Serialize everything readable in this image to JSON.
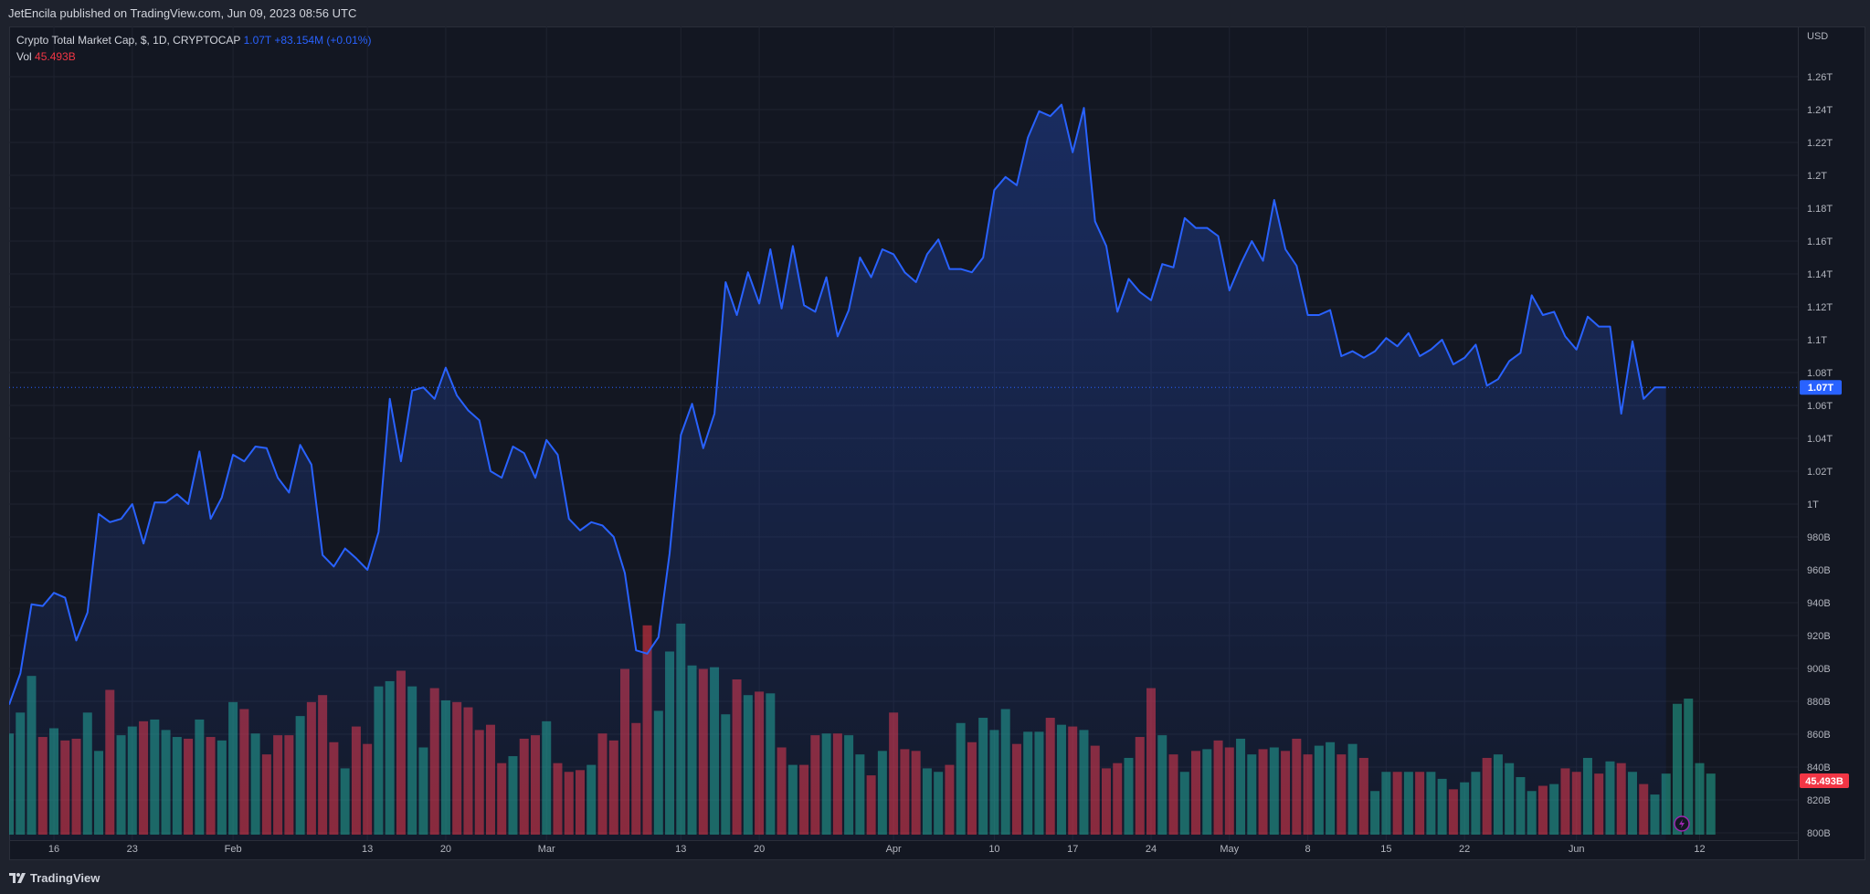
{
  "header": {
    "publisher": "JetEncila published on TradingView.com, Jun 09, 2023 08:56 UTC"
  },
  "legend": {
    "symbol": "Crypto Total Market Cap, $, 1D, CRYPTOCAP",
    "last": "1.07T",
    "change": "+83.154M (+0.01%)",
    "vol_label": "Vol",
    "vol_value": "45.493B"
  },
  "footer": {
    "brand": "TradingView"
  },
  "colors": {
    "line": "#2962ff",
    "up_volume": "#22ab94",
    "down_volume": "#f23645",
    "background": "#131722"
  },
  "chart_data": {
    "type": "area",
    "currency": "USD",
    "y_unit_label": "USD",
    "ylim": [
      800,
      1270
    ],
    "y_ticks": [
      {
        "value": 1260,
        "label": "1.26T"
      },
      {
        "value": 1240,
        "label": "1.24T"
      },
      {
        "value": 1220,
        "label": "1.22T"
      },
      {
        "value": 1200,
        "label": "1.2T"
      },
      {
        "value": 1180,
        "label": "1.18T"
      },
      {
        "value": 1160,
        "label": "1.16T"
      },
      {
        "value": 1140,
        "label": "1.14T"
      },
      {
        "value": 1120,
        "label": "1.12T"
      },
      {
        "value": 1100,
        "label": "1.1T"
      },
      {
        "value": 1080,
        "label": "1.08T"
      },
      {
        "value": 1060,
        "label": "1.06T"
      },
      {
        "value": 1040,
        "label": "1.04T"
      },
      {
        "value": 1020,
        "label": "1.02T"
      },
      {
        "value": 1000,
        "label": "1T"
      },
      {
        "value": 980,
        "label": "980B"
      },
      {
        "value": 960,
        "label": "960B"
      },
      {
        "value": 940,
        "label": "940B"
      },
      {
        "value": 920,
        "label": "920B"
      },
      {
        "value": 900,
        "label": "900B"
      },
      {
        "value": 880,
        "label": "880B"
      },
      {
        "value": 860,
        "label": "860B"
      },
      {
        "value": 840,
        "label": "840B"
      },
      {
        "value": 820,
        "label": "820B"
      },
      {
        "value": 800,
        "label": "800B"
      }
    ],
    "x_ticks": [
      {
        "index": 4,
        "label": "16"
      },
      {
        "index": 11,
        "label": "23"
      },
      {
        "index": 20,
        "label": "Feb"
      },
      {
        "index": 32,
        "label": "13"
      },
      {
        "index": 39,
        "label": "20"
      },
      {
        "index": 48,
        "label": "Mar"
      },
      {
        "index": 60,
        "label": "13"
      },
      {
        "index": 67,
        "label": "20"
      },
      {
        "index": 79,
        "label": "Apr"
      },
      {
        "index": 88,
        "label": "10"
      },
      {
        "index": 95,
        "label": "17"
      },
      {
        "index": 102,
        "label": "24"
      },
      {
        "index": 109,
        "label": "May"
      },
      {
        "index": 116,
        "label": "8"
      },
      {
        "index": 123,
        "label": "15"
      },
      {
        "index": 130,
        "label": "22"
      },
      {
        "index": 140,
        "label": "Jun"
      },
      {
        "index": 151,
        "label": "12"
      }
    ],
    "last_price_label": "1.07T",
    "last_price_value": 1071,
    "last_volume_label": "45.493B",
    "series": [
      {
        "name": "Crypto Total Market Cap",
        "values": [
          878,
          897,
          939,
          938,
          946,
          943,
          917,
          934,
          994,
          989,
          991,
          1000,
          976,
          1001,
          1001,
          1006,
          1000,
          1032,
          991,
          1004,
          1030,
          1026,
          1035,
          1034,
          1016,
          1007,
          1036,
          1024,
          969,
          962,
          973,
          967,
          960,
          983,
          1064,
          1026,
          1069,
          1071,
          1064,
          1083,
          1066,
          1057,
          1051,
          1020,
          1016,
          1035,
          1031,
          1016,
          1039,
          1030,
          991,
          984,
          989,
          987,
          980,
          958,
          911,
          909,
          919,
          970,
          1042,
          1061,
          1034,
          1055,
          1135,
          1115,
          1141,
          1122,
          1155,
          1119,
          1157,
          1121,
          1117,
          1138,
          1102,
          1118,
          1150,
          1138,
          1155,
          1152,
          1141,
          1135,
          1152,
          1161,
          1143,
          1143,
          1141,
          1150,
          1191,
          1199,
          1194,
          1223,
          1239,
          1236,
          1243,
          1214,
          1241,
          1172,
          1157,
          1117,
          1137,
          1129,
          1124,
          1146,
          1144,
          1174,
          1168,
          1168,
          1163,
          1130,
          1146,
          1160,
          1148,
          1185,
          1155,
          1145,
          1115,
          1115,
          1118,
          1090,
          1093,
          1089,
          1093,
          1101,
          1096,
          1104,
          1090,
          1094,
          1100,
          1085,
          1089,
          1097,
          1072,
          1076,
          1087,
          1092,
          1127,
          1115,
          1117,
          1102,
          1094,
          1114,
          1108,
          1108,
          1055,
          1099,
          1064,
          1071,
          1071
        ]
      }
    ],
    "volume": {
      "ylim": [
        0,
        110
      ],
      "values": [
        58,
        70,
        91,
        56,
        61,
        54,
        55,
        70,
        48,
        83,
        57,
        62,
        65,
        66,
        60,
        56,
        55,
        66,
        56,
        54,
        76,
        72,
        58,
        46,
        57,
        57,
        68,
        76,
        80,
        53,
        38,
        62,
        52,
        85,
        88,
        94,
        85,
        50,
        84,
        77,
        76,
        73,
        60,
        63,
        41,
        45,
        55,
        57,
        65,
        41,
        36,
        37,
        40,
        58,
        54,
        95,
        64,
        120,
        71,
        105,
        121,
        97,
        95,
        96,
        69,
        89,
        80,
        82,
        81,
        50,
        40,
        40,
        57,
        58,
        58,
        57,
        46,
        34,
        48,
        70,
        49,
        48,
        38,
        36,
        40,
        64,
        53,
        67,
        60,
        72,
        52,
        59,
        59,
        67,
        63,
        62,
        60,
        51,
        38,
        41,
        44,
        56,
        84,
        57,
        46,
        36,
        48,
        49,
        54,
        50,
        55,
        46,
        49,
        50,
        48,
        55,
        46,
        51,
        53,
        46,
        52,
        44,
        25,
        36,
        36,
        36,
        36,
        36,
        32,
        26,
        30,
        36,
        44,
        46,
        41,
        33,
        25,
        28,
        29,
        38,
        36,
        44,
        35,
        42,
        41,
        36,
        29,
        23,
        35,
        75,
        78,
        41,
        35
      ]
    }
  }
}
